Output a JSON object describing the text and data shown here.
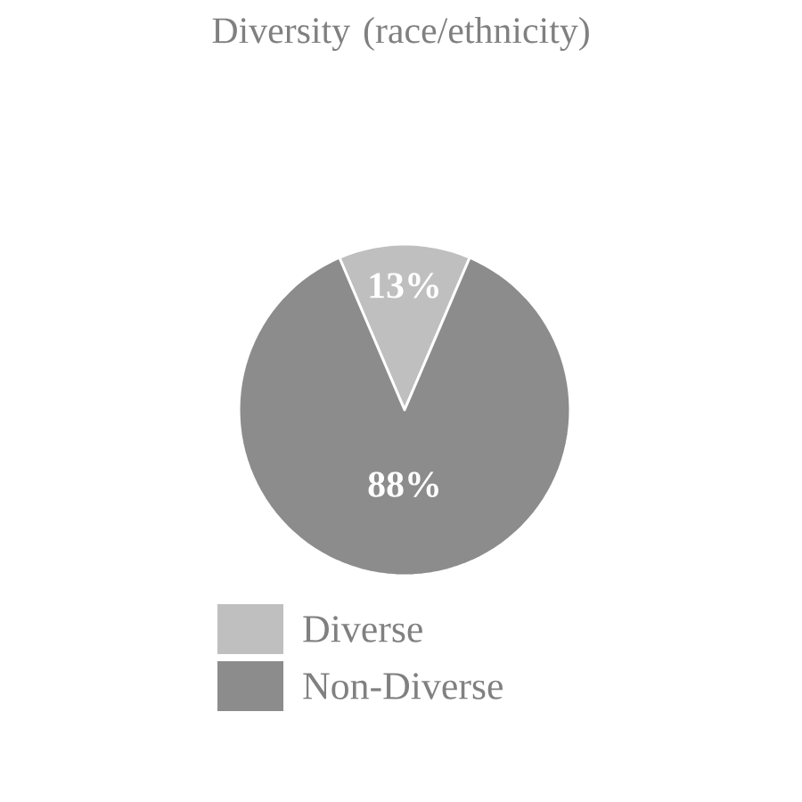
{
  "chart_data": {
    "type": "pie",
    "title": "Diversity (race/ethnicity)",
    "categories": [
      "Diverse",
      "Non-Diverse"
    ],
    "values": [
      13,
      88
    ],
    "colors": [
      "#bfbfbf",
      "#8c8c8c"
    ],
    "value_labels": [
      "13%",
      "88%"
    ],
    "legend": "bottom"
  }
}
